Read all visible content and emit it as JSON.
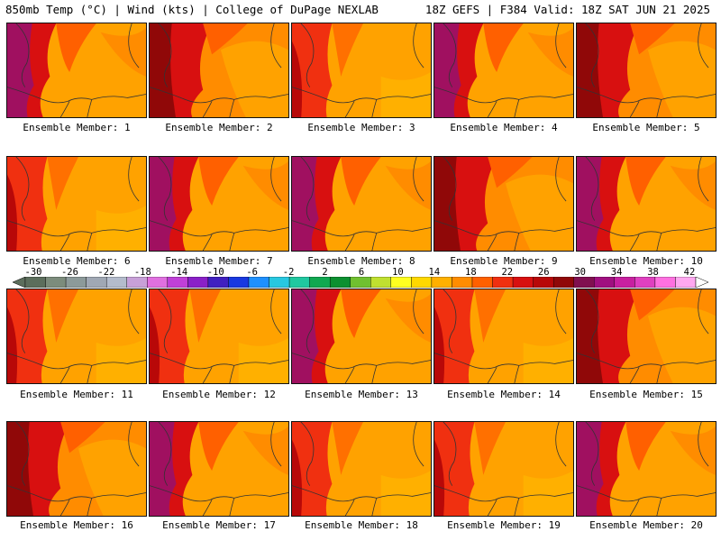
{
  "header": {
    "left": "850mb Temp (°C) | Wind (kts) | College of DuPage NEXLAB",
    "right": "18Z GEFS | F384 Valid: 18Z SAT JUN 21 2025"
  },
  "panels": [
    {
      "label": "Ensemble Member: 1",
      "variant": 1
    },
    {
      "label": "Ensemble Member: 2",
      "variant": 2
    },
    {
      "label": "Ensemble Member: 3",
      "variant": 3
    },
    {
      "label": "Ensemble Member: 4",
      "variant": 1
    },
    {
      "label": "Ensemble Member: 5",
      "variant": 2
    },
    {
      "label": "Ensemble Member: 6",
      "variant": 3
    },
    {
      "label": "Ensemble Member: 7",
      "variant": 1
    },
    {
      "label": "Ensemble Member: 8",
      "variant": 1
    },
    {
      "label": "Ensemble Member: 9",
      "variant": 2
    },
    {
      "label": "Ensemble Member: 10",
      "variant": 1
    },
    {
      "label": "Ensemble Member: 11",
      "variant": 3
    },
    {
      "label": "Ensemble Member: 12",
      "variant": 3
    },
    {
      "label": "Ensemble Member: 13",
      "variant": 1
    },
    {
      "label": "Ensemble Member: 14",
      "variant": 3
    },
    {
      "label": "Ensemble Member: 15",
      "variant": 2
    },
    {
      "label": "Ensemble Member: 16",
      "variant": 2
    },
    {
      "label": "Ensemble Member: 17",
      "variant": 1
    },
    {
      "label": "Ensemble Member: 18",
      "variant": 3
    },
    {
      "label": "Ensemble Member: 19",
      "variant": 3
    },
    {
      "label": "Ensemble Member: 20",
      "variant": 1
    }
  ],
  "colorbar": {
    "labels": [
      "-30",
      "-26",
      "-22",
      "-18",
      "-14",
      "-10",
      "-6",
      "-2",
      "2",
      "6",
      "10",
      "14",
      "18",
      "22",
      "26",
      "30",
      "34",
      "38",
      "42"
    ],
    "colors": [
      "#5c6e5c",
      "#7c8c7c",
      "#8c9a9a",
      "#a0a8b4",
      "#b4bccc",
      "#c8a0d8",
      "#e070e0",
      "#c040d8",
      "#8a20c8",
      "#4020c0",
      "#1838e0",
      "#1e90ff",
      "#28c8e0",
      "#20c8a0",
      "#10a850",
      "#0c9030",
      "#70c030",
      "#c0e030",
      "#ffff20",
      "#ffd800",
      "#ffb000",
      "#ff8c00",
      "#ff6000",
      "#f03010",
      "#d81010",
      "#b80808",
      "#900808",
      "#801050",
      "#a01080",
      "#c820a0",
      "#e040c0",
      "#ff70e0",
      "#ffa8f0"
    ]
  }
}
